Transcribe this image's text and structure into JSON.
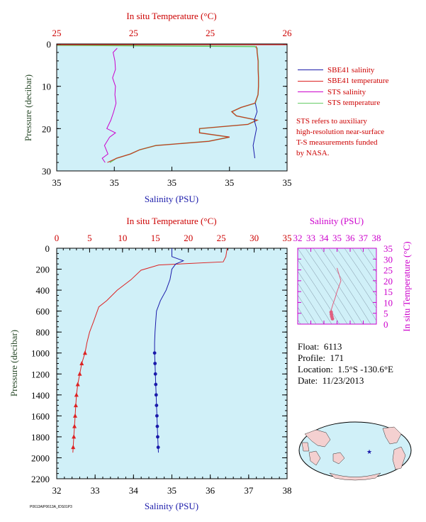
{
  "float_info": {
    "float_label": "Float:",
    "float_value": "6113",
    "profile_label": "Profile:",
    "profile_value": "171",
    "location_label": "Location:",
    "location_value": "1.5°S  -130.6°E",
    "date_label": "Date:",
    "date_value": "11/23/2013"
  },
  "legend": [
    {
      "label": "SBE41 salinity",
      "color": "#1a1aaa"
    },
    {
      "label": "SBE41 temperature",
      "color": "#dd2222"
    },
    {
      "label": "STS salinity",
      "color": "#cc00cc"
    },
    {
      "label": "STS temperature",
      "color": "#66cc66"
    }
  ],
  "note": [
    "STS refers to auxiliary",
    "high-resolution near-surface",
    "T-S measurements funded",
    "by NASA."
  ],
  "footer_id": "P0613A/P0613A_IDS01P3",
  "chart_data": [
    {
      "id": "near-surface",
      "type": "line",
      "top_axis_label": "In situ Temperature (°C)",
      "top_ticks": [
        "25",
        "25",
        "25",
        "26"
      ],
      "bottom_axis_label": "Salinity (PSU)",
      "bottom_ticks": [
        "35",
        "35",
        "35",
        "35",
        "35"
      ],
      "ylabel": "Pressure (decibar)",
      "yticks": [
        "0",
        "10",
        "20",
        "30"
      ],
      "ylim": [
        0,
        30
      ],
      "xlim_temp": [
        25.0,
        26.0
      ],
      "xlim_sal": [
        34.9,
        35.1
      ],
      "background": "#d0f0f8",
      "series": [
        {
          "name": "STS salinity",
          "color": "#cc00cc",
          "units": "PSU",
          "p": [
            1,
            2,
            4,
            6,
            8,
            10,
            12,
            14,
            16,
            18,
            20,
            21,
            22,
            24,
            26,
            27,
            28
          ],
          "v": [
            34.9525,
            34.949,
            34.9505,
            34.951,
            34.9485,
            34.951,
            34.9505,
            34.9515,
            34.9495,
            34.947,
            34.9435,
            34.951,
            34.946,
            34.9415,
            34.9445,
            34.9395,
            34.942
          ]
        },
        {
          "name": "STS temperature",
          "color": "#66cc66",
          "units": "°C",
          "p": [
            0.3,
            0.6,
            1,
            2,
            4,
            6,
            8,
            10,
            12,
            14,
            15,
            16,
            17,
            18,
            19,
            20,
            21,
            22,
            23,
            24,
            25,
            26,
            27,
            28
          ],
          "v": [
            25.0,
            25.86,
            25.87,
            25.87,
            25.875,
            25.875,
            25.876,
            25.876,
            25.874,
            25.862,
            25.8,
            25.76,
            25.78,
            25.87,
            25.83,
            25.62,
            25.62,
            25.75,
            25.66,
            25.43,
            25.36,
            25.32,
            25.26,
            25.23
          ]
        },
        {
          "name": "SBE41 temperature",
          "color": "#dd2222",
          "units": "°C",
          "p": [
            0.5,
            1,
            2,
            4,
            6,
            8,
            10,
            12,
            14,
            15,
            16,
            17,
            18,
            19,
            20,
            21,
            22,
            23,
            24,
            25,
            26,
            27,
            28
          ],
          "v": [
            25.866,
            25.868,
            25.87,
            25.874,
            25.874,
            25.876,
            25.876,
            25.874,
            25.86,
            25.8,
            25.76,
            25.78,
            25.87,
            25.83,
            25.62,
            25.62,
            25.75,
            25.66,
            25.43,
            25.36,
            25.32,
            25.26,
            25.22
          ]
        },
        {
          "name": "SBE41 salinity",
          "color": "#1a1aaa",
          "units": "PSU",
          "p": [
            14,
            16,
            18,
            20,
            22,
            24,
            26,
            27
          ],
          "v": [
            35.0725,
            35.074,
            35.0715,
            35.0735,
            35.072,
            35.0705,
            35.0715,
            35.072
          ]
        }
      ]
    },
    {
      "id": "full-profile",
      "type": "line",
      "top_axis_label": "In situ Temperature (°C)",
      "top_ticks": [
        "0",
        "5",
        "10",
        "15",
        "20",
        "25",
        "30",
        "35"
      ],
      "bottom_axis_label": "Salinity (PSU)",
      "bottom_ticks": [
        "32",
        "33",
        "34",
        "35",
        "36",
        "37",
        "38"
      ],
      "ylabel": "Pressure (decibar)",
      "yticks": [
        "0",
        "200",
        "400",
        "600",
        "800",
        "1000",
        "1200",
        "1400",
        "1600",
        "1800",
        "2000",
        "2200"
      ],
      "ylim": [
        0,
        2200
      ],
      "xlim_temp": [
        0,
        35
      ],
      "xlim_sal": [
        32,
        38
      ],
      "background": "#d0f0f8",
      "series": [
        {
          "name": "temperature",
          "color": "#dd2222",
          "units": "°C",
          "p": [
            0,
            80,
            130,
            160,
            210,
            300,
            400,
            500,
            560,
            700,
            800,
            900,
            1000,
            1100,
            1200,
            1300,
            1400,
            1500,
            1600,
            1700,
            1800,
            1950
          ],
          "v": [
            25.9,
            25.7,
            25.3,
            15.5,
            12.8,
            11.3,
            9.2,
            7.6,
            6.4,
            5.6,
            5.0,
            4.6,
            4.3,
            3.8,
            3.5,
            3.2,
            3.0,
            2.9,
            2.8,
            2.7,
            2.6,
            2.45
          ],
          "markers": "triangle",
          "marker_from_p": 1000
        },
        {
          "name": "salinity",
          "color": "#1a1aaa",
          "units": "PSU",
          "p": [
            0,
            80,
            120,
            150,
            200,
            300,
            400,
            500,
            600,
            700,
            800,
            900,
            1000,
            1100,
            1200,
            1300,
            1400,
            1500,
            1600,
            1700,
            1800,
            1950
          ],
          "v": [
            35.0,
            35.0,
            35.3,
            35.1,
            35.0,
            34.95,
            34.85,
            34.7,
            34.6,
            34.58,
            34.56,
            34.55,
            34.55,
            34.56,
            34.57,
            34.58,
            34.59,
            34.6,
            34.61,
            34.62,
            34.63,
            34.65
          ],
          "markers": "circle",
          "marker_from_p": 1000
        }
      ]
    },
    {
      "id": "ts-diagram",
      "type": "line",
      "top_axis_label": "Salinity (PSU)",
      "top_ticks": [
        "32",
        "33",
        "34",
        "35",
        "36",
        "37",
        "38"
      ],
      "right_axis_label": "In situ Temperature (°C)",
      "right_ticks": [
        "0",
        "5",
        "10",
        "15",
        "20",
        "25",
        "30",
        "35"
      ],
      "xlim": [
        32,
        38
      ],
      "ylim": [
        0,
        35
      ],
      "background": "#d0f0f8",
      "series": [
        {
          "name": "T-S",
          "color": "#e06080",
          "x": [
            34.65,
            34.6,
            34.57,
            34.55,
            34.58,
            34.7,
            34.85,
            35.0,
            35.3,
            35.0
          ],
          "y": [
            2.5,
            3.5,
            4.5,
            5.5,
            7.0,
            9.5,
            12.0,
            15.0,
            20.0,
            25.9
          ]
        }
      ]
    }
  ],
  "map": {
    "marker_color": "#1a1aaa",
    "ocean_color": "#d0f0f8",
    "land_color": "#f4d0d0"
  }
}
